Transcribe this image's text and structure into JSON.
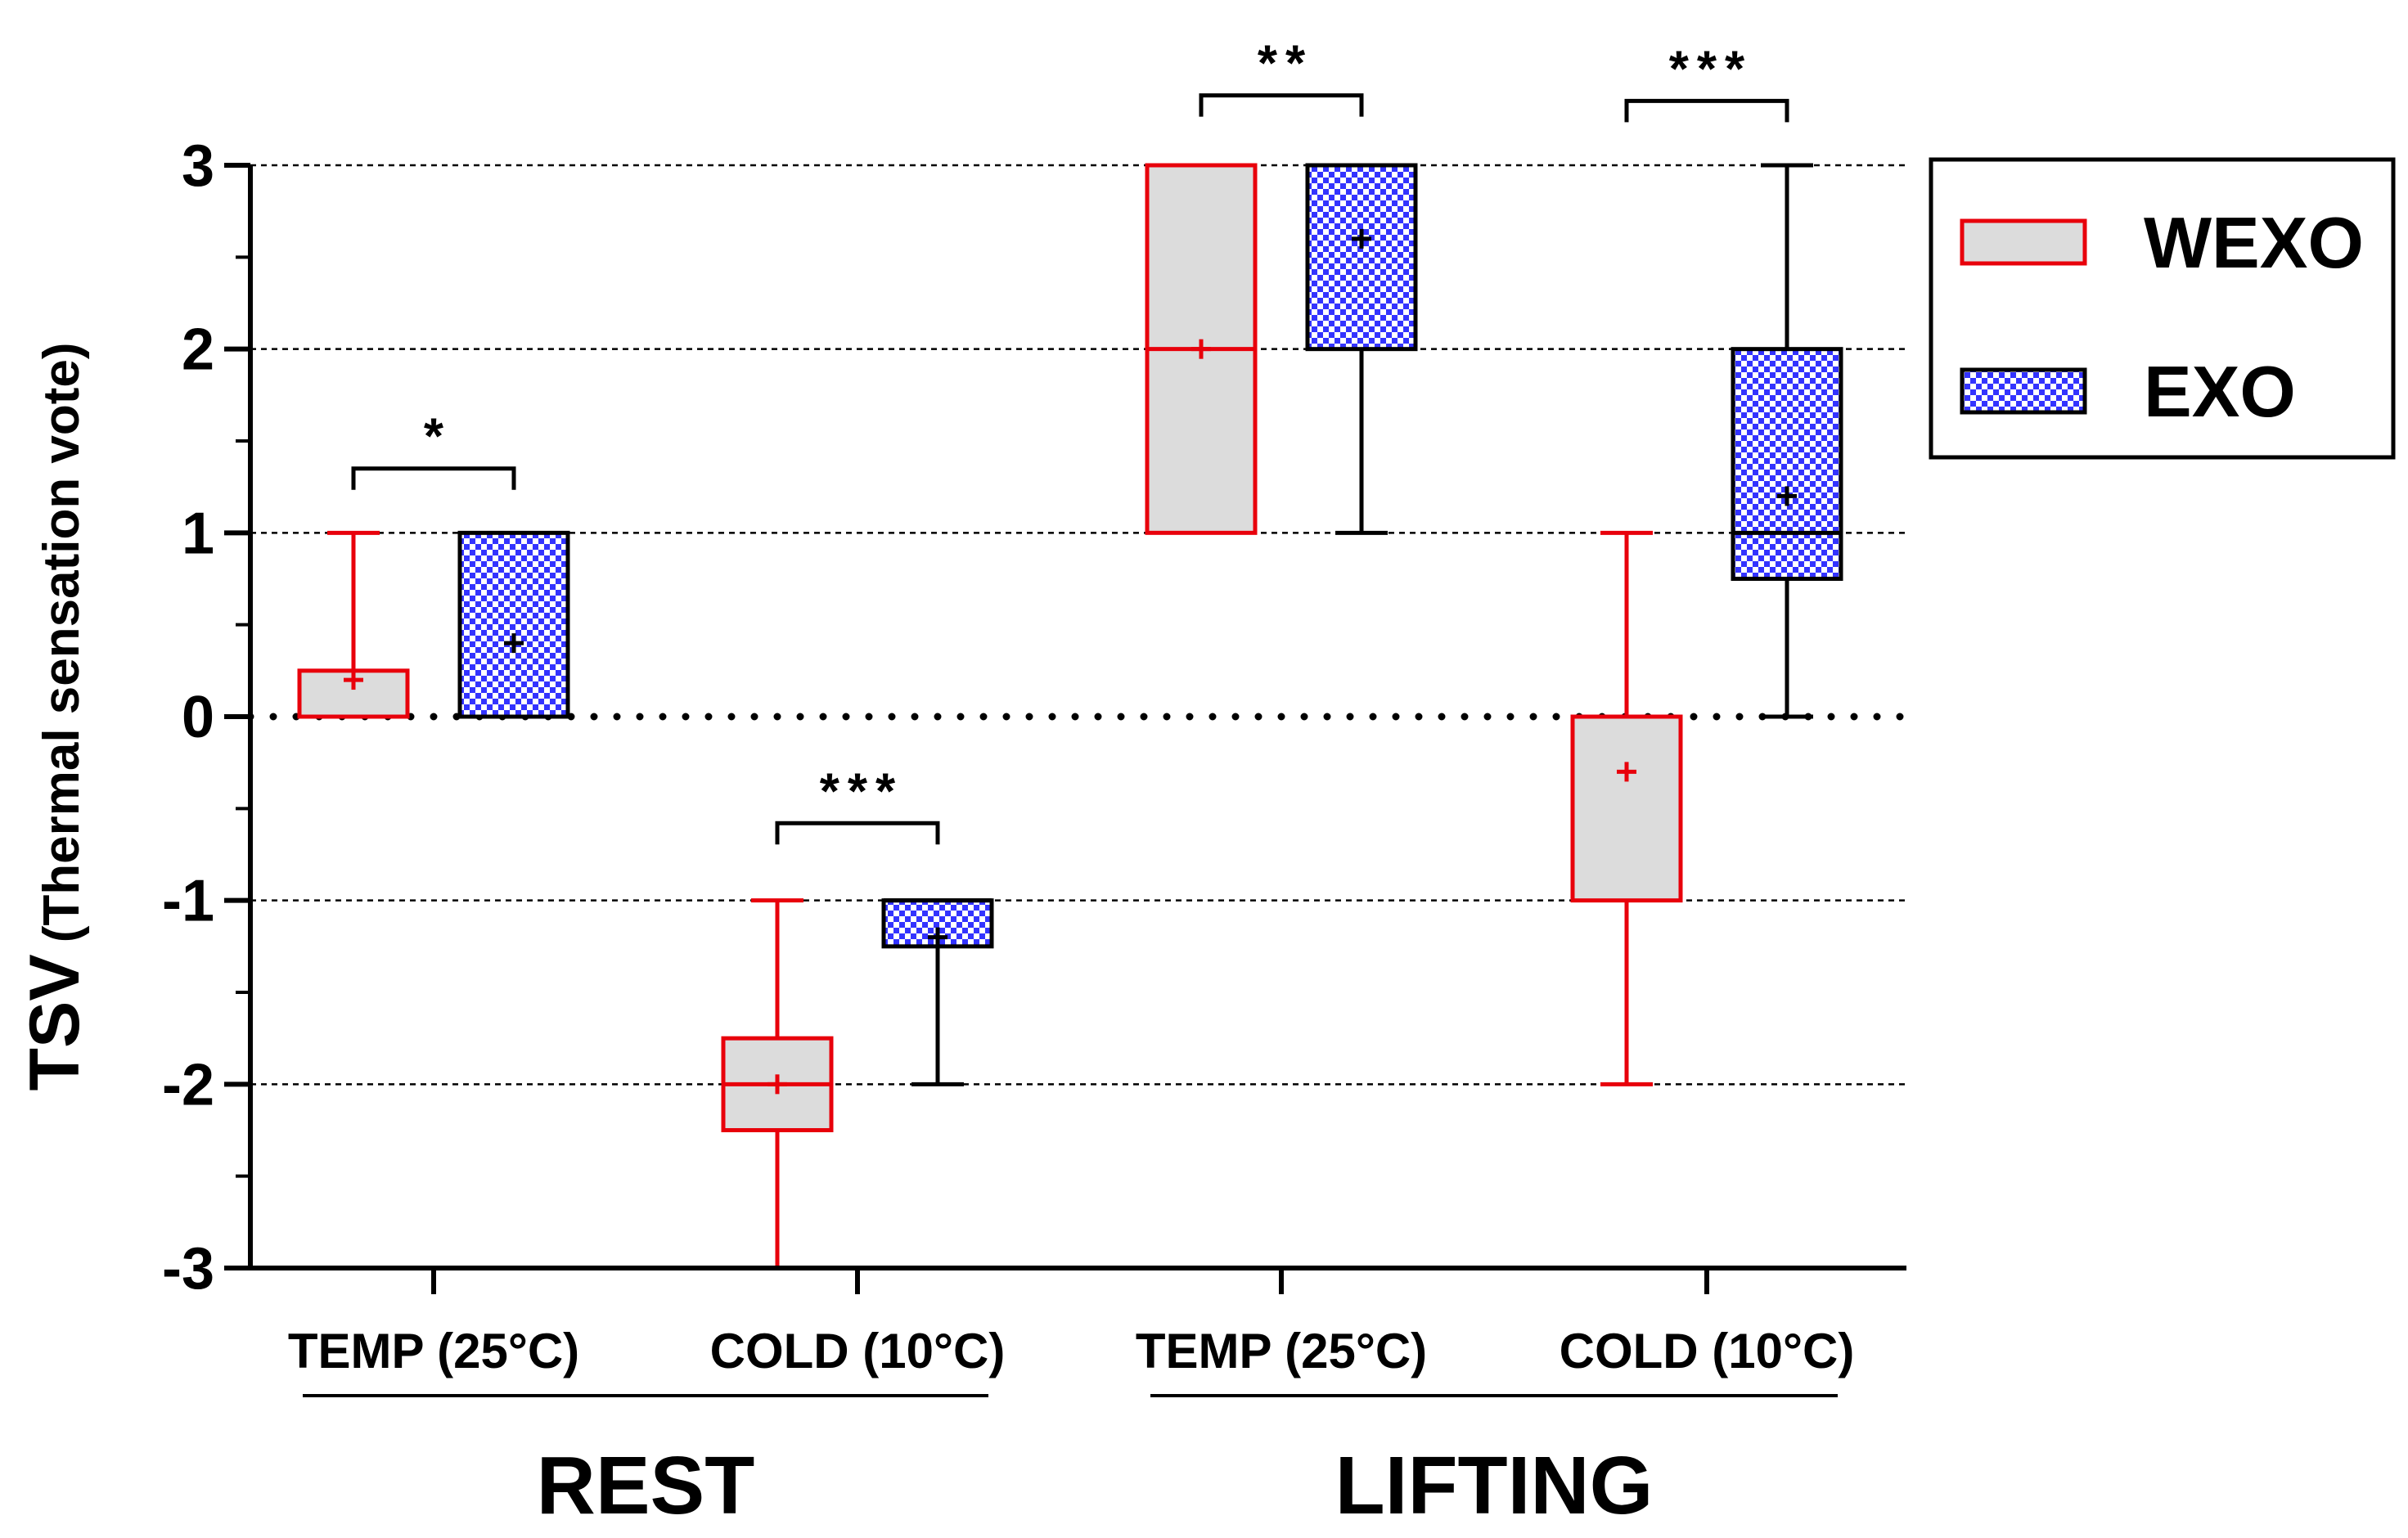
{
  "chart_data": {
    "type": "boxplot",
    "ylabel_main": "TSV",
    "ylabel_sub": "(Thermal sensation vote)",
    "ylim": [
      -3,
      3
    ],
    "yticks": [
      "3",
      "2",
      "1",
      "0",
      "-1",
      "-2",
      "-3"
    ],
    "grid": "dashed horizontal at integer values",
    "categories": [
      "TEMP (25°C)",
      "COLD (10°C)",
      "TEMP (25°C)",
      "COLD (10°C)"
    ],
    "groups": [
      {
        "label": "REST",
        "categories": [
          0,
          1
        ]
      },
      {
        "label": "LIFTING",
        "categories": [
          2,
          3
        ]
      }
    ],
    "series": [
      {
        "name": "WEXO",
        "color": "#e8000b",
        "fill": "#dcdcdc",
        "boxes": [
          {
            "min": 0,
            "q1": 0,
            "median": 0,
            "q3": 0.25,
            "max": 1,
            "mean": 0.2
          },
          {
            "min": -3,
            "q1": -2.25,
            "median": -2,
            "q3": -1.75,
            "max": -1,
            "mean": -2
          },
          {
            "min": 1,
            "q1": 1,
            "median": 2,
            "q3": 3,
            "max": 3,
            "mean": 2
          },
          {
            "min": -2,
            "q1": -1,
            "median": 0,
            "q3": 0,
            "max": 1,
            "mean": -0.3
          }
        ]
      },
      {
        "name": "EXO",
        "color": "#000000",
        "fill": "#3333ff",
        "boxes": [
          {
            "min": 0,
            "q1": 0,
            "median": 0,
            "q3": 1,
            "max": 1,
            "mean": 0.4
          },
          {
            "min": -2,
            "q1": -1.25,
            "median": -1,
            "q3": -1,
            "max": -1,
            "mean": -1.2
          },
          {
            "min": 1,
            "q1": 2,
            "median": 3,
            "q3": 3,
            "max": 3,
            "mean": 2.6
          },
          {
            "min": 0,
            "q1": 0.75,
            "median": 1,
            "q3": 2,
            "max": 3,
            "mean": 1.2
          }
        ]
      }
    ],
    "significance": [
      {
        "category": 0,
        "label": "*",
        "level": 1.35
      },
      {
        "category": 1,
        "label": "***",
        "level": -0.58
      },
      {
        "category": 2,
        "label": "**",
        "level": 3.38
      },
      {
        "category": 3,
        "label": "***",
        "level": 3.35
      }
    ],
    "legend": {
      "position": "top-right",
      "entries": [
        "WEXO",
        "EXO"
      ]
    }
  }
}
